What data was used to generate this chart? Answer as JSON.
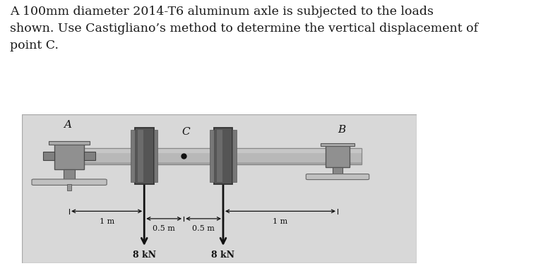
{
  "title_text": "A 100mm diameter 2014-T6 aluminum axle is subjected to the loads\nshown. Use Castigliano’s method to determine the vertical displacement of\npoint C.",
  "title_fontsize": 12.5,
  "title_color": "#1a1a1a",
  "bg_color": "#d8d8d8",
  "outer_bg": "#ffffff",
  "label_A": "A",
  "label_B": "B",
  "label_C": "C",
  "label_1m_left": "1 m",
  "label_1m_right": "1 m",
  "label_05m_left": "0.5 m",
  "label_05m_right": "0.5 m",
  "label_8kN_left": "8 kN",
  "label_8kN_right": "8 kN",
  "shaft_color": "#b8b8b8",
  "shaft_dark": "#888888",
  "disk_color": "#555555",
  "disk_edge": "#333333",
  "support_color": "#909090",
  "support_dark": "#666666",
  "arrow_color": "#111111",
  "text_color": "#111111"
}
